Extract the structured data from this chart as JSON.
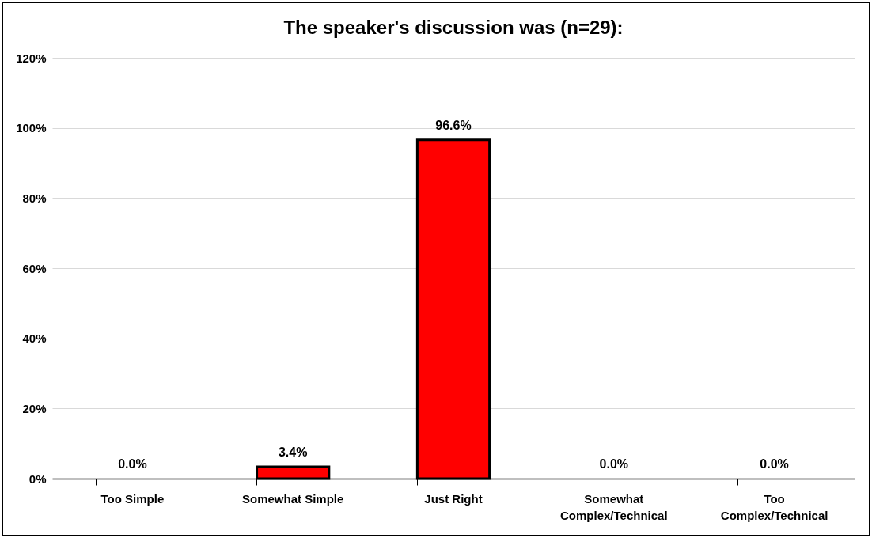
{
  "chart_data": {
    "type": "bar",
    "title": "The speaker's discussion was (n=29):",
    "categories": [
      "Too Simple",
      "Somewhat Simple",
      "Just Right",
      "Somewhat Complex/Technical",
      "Too Complex/Technical"
    ],
    "values": [
      0.0,
      3.4,
      96.6,
      0.0,
      0.0
    ],
    "value_labels": [
      "0.0%",
      "3.4%",
      "96.6%",
      "0.0%",
      "0.0%"
    ],
    "color": "#ff0000",
    "ylim": [
      0,
      120
    ],
    "yticks": [
      {
        "value": 0,
        "label": "0%"
      },
      {
        "value": 20,
        "label": "20%"
      },
      {
        "value": 40,
        "label": "40%"
      },
      {
        "value": 60,
        "label": "60%"
      },
      {
        "value": 80,
        "label": "80%"
      },
      {
        "value": 100,
        "label": "100%"
      },
      {
        "value": 120,
        "label": "120%"
      }
    ],
    "grid": "y"
  }
}
